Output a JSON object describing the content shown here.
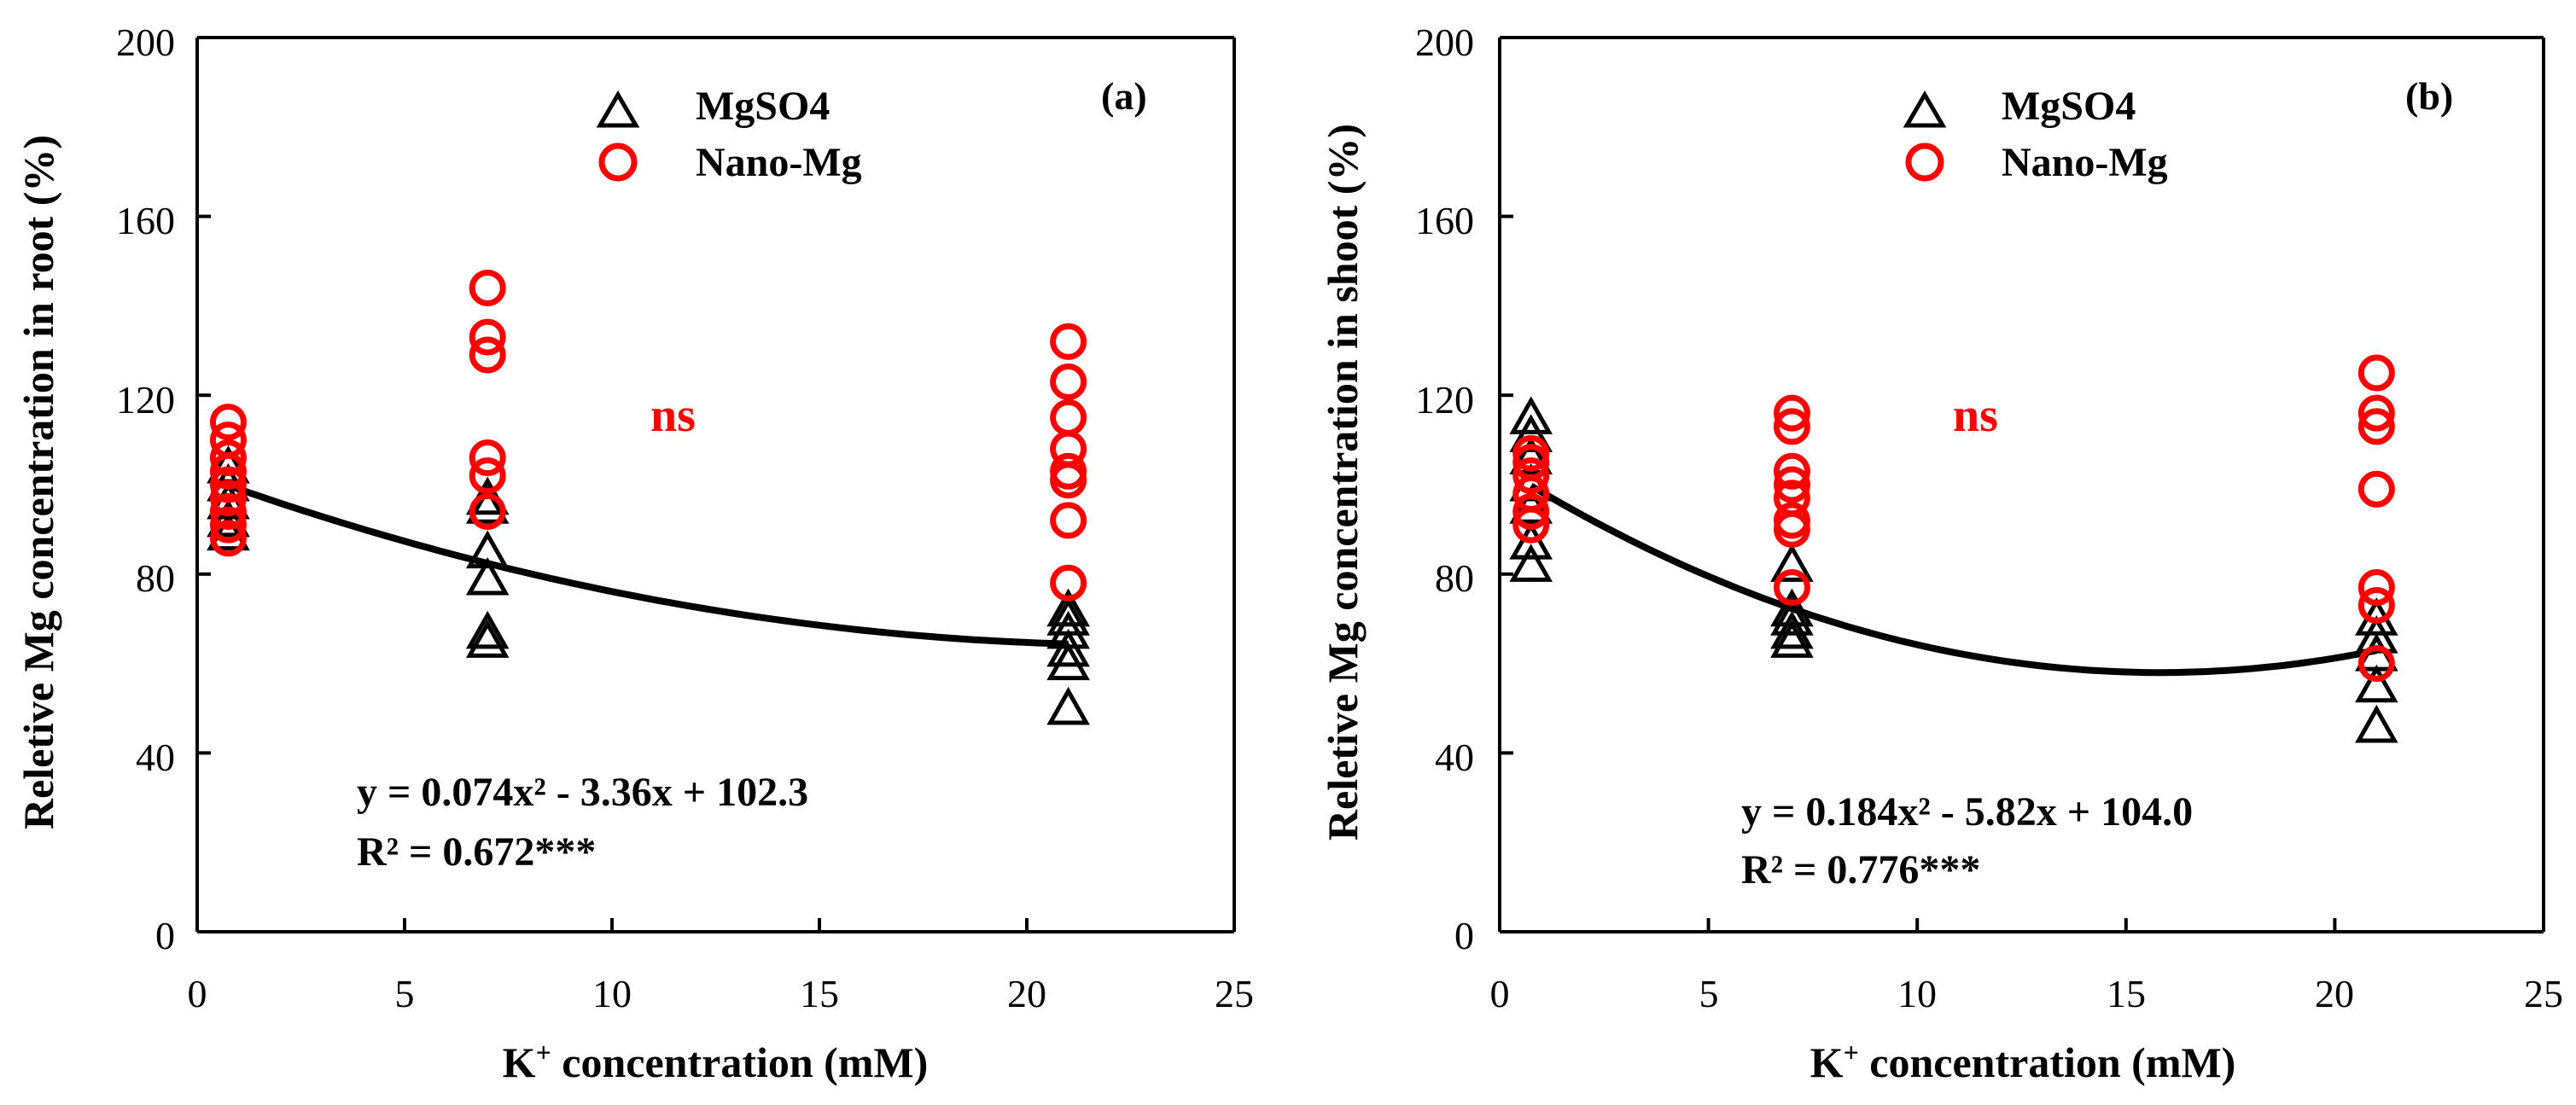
{
  "chart_data": [
    {
      "type": "scatter",
      "panel_label": "(a)",
      "xlabel_prefix": "K",
      "xlabel_sup": "+",
      "xlabel_suffix": " concentration (mM)",
      "ylabel": "Reletive Mg concentration in root (%)",
      "xlim": [
        0,
        25
      ],
      "ylim": [
        0,
        200
      ],
      "xticks": [
        0,
        5,
        10,
        15,
        20,
        25
      ],
      "yticks": [
        0,
        40,
        80,
        120,
        160,
        200
      ],
      "grid": false,
      "legend_position": "top-center",
      "series": [
        {
          "name": "MgSO4",
          "marker": "triangle",
          "color": "#000000",
          "points": [
            [
              0.75,
              89
            ],
            [
              0.75,
              92
            ],
            [
              0.75,
              96
            ],
            [
              0.75,
              100
            ],
            [
              0.75,
              104
            ],
            [
              7,
              65
            ],
            [
              7,
              67
            ],
            [
              7,
              79
            ],
            [
              7,
              85
            ],
            [
              7,
              95
            ],
            [
              7,
              97
            ],
            [
              21,
              50
            ],
            [
              21,
              60
            ],
            [
              21,
              63
            ],
            [
              21,
              67
            ],
            [
              21,
              70
            ],
            [
              21,
              72
            ]
          ]
        },
        {
          "name": "Nano-Mg",
          "marker": "circle",
          "color": "#ff0000",
          "points": [
            [
              0.75,
              88
            ],
            [
              0.75,
              91
            ],
            [
              0.75,
              94
            ],
            [
              0.75,
              97
            ],
            [
              0.75,
              100
            ],
            [
              0.75,
              103
            ],
            [
              0.75,
              106
            ],
            [
              0.75,
              110
            ],
            [
              0.75,
              114
            ],
            [
              7,
              94
            ],
            [
              7,
              102
            ],
            [
              7,
              106
            ],
            [
              7,
              129
            ],
            [
              7,
              133
            ],
            [
              7,
              144
            ],
            [
              21,
              78
            ],
            [
              21,
              92
            ],
            [
              21,
              101
            ],
            [
              21,
              103
            ],
            [
              21,
              108
            ],
            [
              21,
              115
            ],
            [
              21,
              123
            ],
            [
              21,
              132
            ]
          ]
        }
      ],
      "fit": {
        "a": 0.074,
        "b": -3.36,
        "c": 102.3,
        "x_range": [
          0.75,
          21
        ]
      },
      "equation_text": "y = 0.074x² - 3.36x + 102.3",
      "r2_text": "R² = 0.672***",
      "annotation": "ns"
    },
    {
      "type": "scatter",
      "panel_label": "(b)",
      "xlabel_prefix": "K",
      "xlabel_sup": "+",
      "xlabel_suffix": " concentration (mM)",
      "ylabel": "Reletive Mg concentration in shoot (%)",
      "xlim": [
        0,
        25
      ],
      "ylim": [
        0,
        200
      ],
      "xticks": [
        0,
        5,
        10,
        15,
        20,
        25
      ],
      "yticks": [
        0,
        40,
        80,
        120,
        160,
        200
      ],
      "grid": false,
      "legend_position": "top-center",
      "series": [
        {
          "name": "MgSO4",
          "marker": "triangle",
          "color": "#000000",
          "points": [
            [
              0.75,
              82
            ],
            [
              0.75,
              87
            ],
            [
              0.75,
              95
            ],
            [
              0.75,
              100
            ],
            [
              0.75,
              106
            ],
            [
              0.75,
              111
            ],
            [
              0.75,
              115
            ],
            [
              7,
              65
            ],
            [
              7,
              67
            ],
            [
              7,
              70
            ],
            [
              7,
              72
            ],
            [
              7,
              82
            ],
            [
              21,
              46
            ],
            [
              21,
              55
            ],
            [
              21,
              62
            ],
            [
              21,
              66
            ],
            [
              21,
              70
            ]
          ]
        },
        {
          "name": "Nano-Mg",
          "marker": "circle",
          "color": "#ff0000",
          "points": [
            [
              0.75,
              91
            ],
            [
              0.75,
              94
            ],
            [
              0.75,
              98
            ],
            [
              0.75,
              102
            ],
            [
              0.75,
              105
            ],
            [
              0.75,
              107
            ],
            [
              7,
              77
            ],
            [
              7,
              90
            ],
            [
              7,
              92
            ],
            [
              7,
              97
            ],
            [
              7,
              100
            ],
            [
              7,
              103
            ],
            [
              7,
              113
            ],
            [
              7,
              116
            ],
            [
              21,
              60
            ],
            [
              21,
              73
            ],
            [
              21,
              77
            ],
            [
              21,
              99
            ],
            [
              21,
              113
            ],
            [
              21,
              116
            ],
            [
              21,
              125
            ]
          ]
        }
      ],
      "fit": {
        "a": 0.184,
        "b": -5.82,
        "c": 104.0,
        "x_range": [
          0.75,
          21
        ]
      },
      "equation_text": "y = 0.184x² - 5.82x + 104.0",
      "r2_text": "R² = 0.776***",
      "annotation": "ns"
    }
  ],
  "colors": {
    "nano_mg": "#ff0000",
    "mgso4": "#000000",
    "ns": "#ff0000"
  }
}
